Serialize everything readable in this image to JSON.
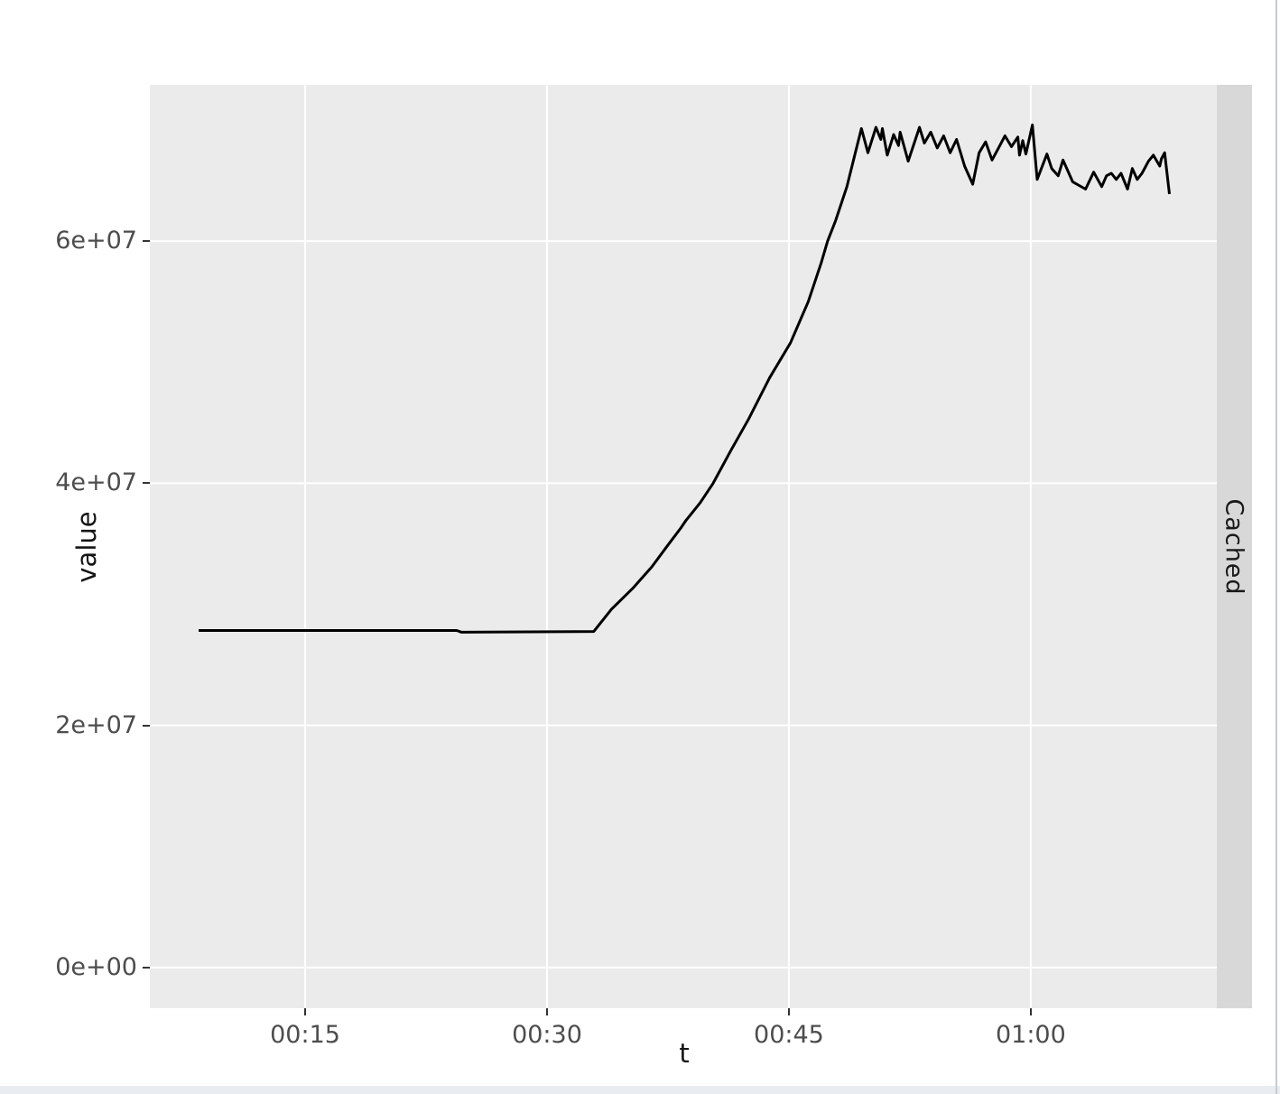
{
  "theme": {
    "page_bg": "#FFFFFF",
    "panel_bg": "#EBEBEB",
    "strip_bg": "#D8D8D8",
    "grid_color": "#FFFFFF",
    "tick_mark_color": "#333333",
    "tick_label_color": "#4D4D4D",
    "axis_title_color": "#141414",
    "strip_text_color": "#1A1A1A",
    "line_color": "#000000",
    "bottom_bar_color": "#E9EDF2",
    "right_border_color": "#C6CBD0"
  },
  "chart_data": {
    "type": "line",
    "title": "",
    "xlabel": "t",
    "ylabel": "value",
    "facet_label": "Cached",
    "legend": "none",
    "grid": "major-only",
    "x_unit": "minutes",
    "x_domain": [
      5.37,
      71.65
    ],
    "y_domain": [
      -3360000,
      72910000
    ],
    "x_ticks": [
      {
        "value": 15,
        "label": "00:15"
      },
      {
        "value": 30,
        "label": "00:30"
      },
      {
        "value": 45,
        "label": "00:45"
      },
      {
        "value": 60,
        "label": "01:00"
      }
    ],
    "y_ticks": [
      {
        "value": 0,
        "label": "0e+00"
      },
      {
        "value": 20000000,
        "label": "2e+07"
      },
      {
        "value": 40000000,
        "label": "4e+07"
      },
      {
        "value": 60000000,
        "label": "6e+07"
      }
    ],
    "series": [
      {
        "name": "Cached",
        "color": "#000000",
        "points": [
          [
            8.4,
            27840000
          ],
          [
            24.4,
            27840000
          ],
          [
            24.7,
            27700000
          ],
          [
            32.9,
            27760000
          ],
          [
            34.0,
            29600000
          ],
          [
            35.3,
            31300000
          ],
          [
            36.5,
            33100000
          ],
          [
            37.5,
            34900000
          ],
          [
            38.3,
            36300000
          ],
          [
            38.6,
            36900000
          ],
          [
            39.5,
            38400000
          ],
          [
            40.3,
            40000000
          ],
          [
            41.4,
            42700000
          ],
          [
            42.5,
            45300000
          ],
          [
            43.8,
            48700000
          ],
          [
            45.1,
            51600000
          ],
          [
            46.2,
            55000000
          ],
          [
            47.0,
            58200000
          ],
          [
            47.4,
            60000000
          ],
          [
            47.9,
            61700000
          ],
          [
            48.6,
            64500000
          ],
          [
            49.1,
            67200000
          ],
          [
            49.5,
            69300000
          ],
          [
            49.9,
            67300000
          ],
          [
            50.4,
            69400000
          ],
          [
            50.7,
            68400000
          ],
          [
            50.8,
            69300000
          ],
          [
            51.1,
            67100000
          ],
          [
            51.5,
            68800000
          ],
          [
            51.8,
            67900000
          ],
          [
            51.9,
            69000000
          ],
          [
            52.4,
            66600000
          ],
          [
            53.1,
            69400000
          ],
          [
            53.4,
            68100000
          ],
          [
            53.8,
            69000000
          ],
          [
            54.2,
            67700000
          ],
          [
            54.6,
            68700000
          ],
          [
            55.0,
            67300000
          ],
          [
            55.4,
            68400000
          ],
          [
            55.9,
            66200000
          ],
          [
            56.4,
            64700000
          ],
          [
            56.8,
            67300000
          ],
          [
            57.2,
            68200000
          ],
          [
            57.6,
            66700000
          ],
          [
            58.0,
            67700000
          ],
          [
            58.4,
            68700000
          ],
          [
            58.8,
            67800000
          ],
          [
            59.2,
            68600000
          ],
          [
            59.3,
            67100000
          ],
          [
            59.5,
            68300000
          ],
          [
            59.7,
            67200000
          ],
          [
            60.1,
            69600000
          ],
          [
            60.4,
            65100000
          ],
          [
            61.0,
            67200000
          ],
          [
            61.3,
            66000000
          ],
          [
            61.7,
            65400000
          ],
          [
            62.0,
            66700000
          ],
          [
            62.3,
            65800000
          ],
          [
            62.6,
            64900000
          ],
          [
            63.0,
            64600000
          ],
          [
            63.4,
            64300000
          ],
          [
            63.9,
            65700000
          ],
          [
            64.4,
            64500000
          ],
          [
            64.7,
            65400000
          ],
          [
            65.0,
            65600000
          ],
          [
            65.3,
            65100000
          ],
          [
            65.6,
            65600000
          ],
          [
            66.0,
            64300000
          ],
          [
            66.3,
            66000000
          ],
          [
            66.6,
            65100000
          ],
          [
            66.9,
            65600000
          ],
          [
            67.3,
            66600000
          ],
          [
            67.6,
            67100000
          ],
          [
            68.0,
            66200000
          ],
          [
            68.1,
            66800000
          ],
          [
            68.3,
            67300000
          ],
          [
            68.6,
            63900000
          ]
        ]
      }
    ]
  }
}
